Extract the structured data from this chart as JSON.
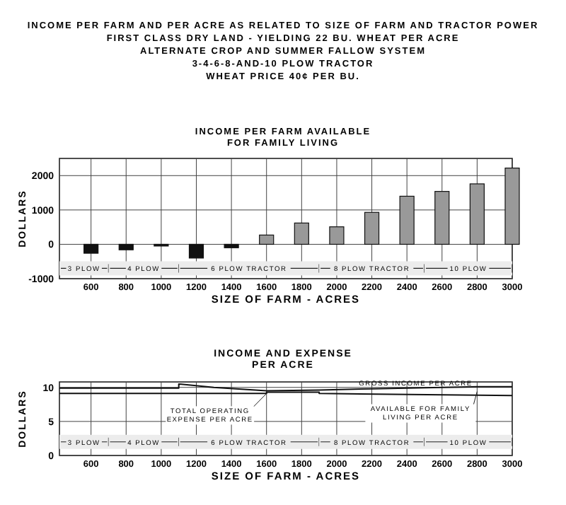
{
  "chart_data": [
    {
      "type": "bar",
      "title": "INCOME PER FARM AND PER ACRE AS RELATED TO SIZE OF FARM AND TRACTOR POWER\nFIRST CLASS DRY LAND - YIELDING 22 BU. WHEAT PER ACRE\nALTERNATE CROP AND SUMMER FALLOW SYSTEM\n3-4-6-8-AND-10 PLOW TRACTOR\nWHEAT PRICE 40¢ PER BU.",
      "subtitle": "INCOME PER FARM AVAILABLE\nFOR FAMILY LIVING",
      "xlabel": "SIZE OF FARM - ACRES",
      "ylabel": "DOLLARS",
      "x": [
        600,
        800,
        1000,
        1200,
        1400,
        1600,
        1800,
        2000,
        2200,
        2400,
        2600,
        2800,
        3000
      ],
      "values": [
        -260,
        -160,
        -50,
        -400,
        -100,
        270,
        620,
        510,
        930,
        1400,
        1540,
        1760,
        2220
      ],
      "colors": [
        "#111111",
        "#111111",
        "#111111",
        "#111111",
        "#111111",
        "#999999",
        "#999999",
        "#999999",
        "#999999",
        "#999999",
        "#999999",
        "#999999",
        "#999999"
      ],
      "xlim": [
        420,
        3000
      ],
      "xticks": [
        600,
        800,
        1000,
        1200,
        1400,
        1600,
        1800,
        2000,
        2200,
        2400,
        2600,
        2800,
        3000
      ],
      "ylim": [
        -1000,
        2500
      ],
      "yticks": [
        -1000,
        0,
        1000,
        2000
      ],
      "grid": true,
      "bands": [
        {
          "axis": "x",
          "from": 420,
          "to": 700,
          "label": "3 PLOW"
        },
        {
          "axis": "x",
          "from": 700,
          "to": 1100,
          "label": "4 PLOW"
        },
        {
          "axis": "x",
          "from": 1100,
          "to": 1900,
          "label": "6 PLOW TRACTOR"
        },
        {
          "axis": "x",
          "from": 1900,
          "to": 2500,
          "label": "8 PLOW TRACTOR"
        },
        {
          "axis": "x",
          "from": 2500,
          "to": 3000,
          "label": "10 PLOW"
        }
      ]
    },
    {
      "type": "line",
      "title": "INCOME AND EXPENSE\nPER ACRE",
      "xlabel": "SIZE OF FARM - ACRES",
      "ylabel": "DOLLARS",
      "series": [
        {
          "color": "#111111",
          "x": [
            420,
            1100,
            1100,
            1300,
            1600,
            1900,
            2200,
            2800,
            3000
          ],
          "values": [
            9.9,
            9.9,
            10.5,
            10.0,
            9.5,
            9.6,
            9.8,
            10.1,
            10.1
          ]
        },
        {
          "color": "#111111",
          "x": [
            420,
            1600,
            1600,
            1900,
            1900,
            3000
          ],
          "values": [
            9.1,
            9.1,
            9.3,
            9.3,
            9.1,
            8.8
          ]
        }
      ],
      "xlim": [
        420,
        3000
      ],
      "xticks": [
        600,
        800,
        1000,
        1200,
        1400,
        1600,
        1800,
        2000,
        2200,
        2400,
        2600,
        2800,
        3000
      ],
      "ylim": [
        0,
        10.8
      ],
      "yticks": [
        0,
        5,
        10
      ],
      "grid": true,
      "annotations": [
        {
          "text": "GROSS INCOME PER ACRE",
          "x": 2450,
          "y": 9.95
        },
        {
          "text": "TOTAL OPERATING\nEXPENSE PER ACRE",
          "x": 1600,
          "y": 9.1
        },
        {
          "text": "AVAILABLE FOR FAMILY\nLIVING PER ACRE",
          "x": 2800,
          "y": 9.4
        }
      ],
      "bands": [
        {
          "axis": "x",
          "from": 420,
          "to": 700,
          "label": "3 PLOW"
        },
        {
          "axis": "x",
          "from": 700,
          "to": 1100,
          "label": "4 PLOW"
        },
        {
          "axis": "x",
          "from": 1100,
          "to": 1900,
          "label": "6 PLOW TRACTOR"
        },
        {
          "axis": "x",
          "from": 1900,
          "to": 2500,
          "label": "8 PLOW TRACTOR"
        },
        {
          "axis": "x",
          "from": 2500,
          "to": 3000,
          "label": "10 PLOW"
        }
      ]
    }
  ]
}
